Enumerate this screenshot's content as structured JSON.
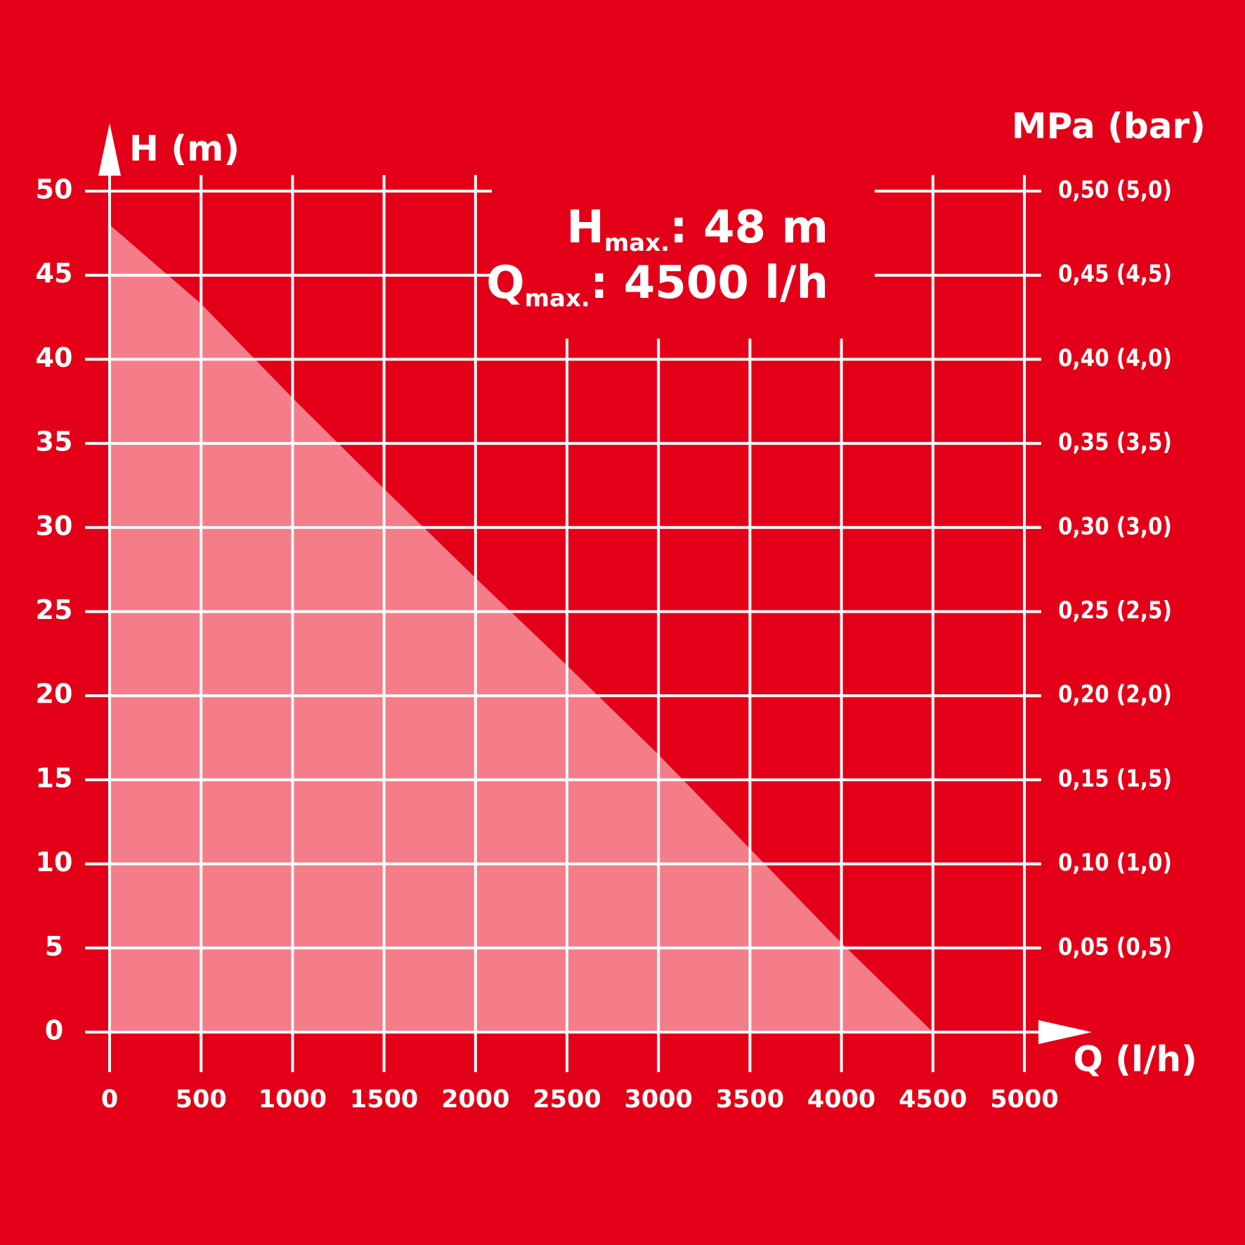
{
  "chart_data": {
    "type": "area",
    "title_y": "H (m)",
    "title_y2": "MPa (bar)",
    "title_x": "Q (l/h)",
    "annotations": [
      {
        "main": "H",
        "sub": "max.",
        "rest": ": 48 m"
      },
      {
        "main": "Q",
        "sub": "max.",
        "rest": ": 4500 l/h"
      }
    ],
    "x": [
      0,
      500,
      1000,
      1500,
      2000,
      2500,
      3000,
      3500,
      4000,
      4500
    ],
    "values": [
      48,
      43.3,
      37.7,
      32.3,
      27.0,
      21.8,
      16.5,
      10.9,
      5.3,
      0
    ],
    "color": "#f47d89",
    "background": "#e30018",
    "grid_color": "#ffffff",
    "xlim": [
      0,
      5000
    ],
    "xticks": [
      0,
      500,
      1000,
      1500,
      2000,
      2500,
      3000,
      3500,
      4000,
      4500,
      5000
    ],
    "ylim": [
      0,
      50
    ],
    "yticks": [
      0,
      5,
      10,
      15,
      20,
      25,
      30,
      35,
      40,
      45,
      50
    ],
    "y2lim": [
      0,
      0.5
    ],
    "y2ticks": [
      {
        "value": 0.05,
        "label": "0,05 (0,5)"
      },
      {
        "value": 0.1,
        "label": "0,10 (1,0)"
      },
      {
        "value": 0.15,
        "label": "0,15 (1,5)"
      },
      {
        "value": 0.2,
        "label": "0,20 (2,0)"
      },
      {
        "value": 0.25,
        "label": "0,25 (2,5)"
      },
      {
        "value": 0.3,
        "label": "0,30 (3,0)"
      },
      {
        "value": 0.35,
        "label": "0,35 (3,5)"
      },
      {
        "value": 0.4,
        "label": "0,40 (4,0)"
      },
      {
        "value": 0.45,
        "label": "0,45 (4,5)"
      },
      {
        "value": 0.5,
        "label": "0,50 (5,0)"
      }
    ],
    "grid": true
  }
}
